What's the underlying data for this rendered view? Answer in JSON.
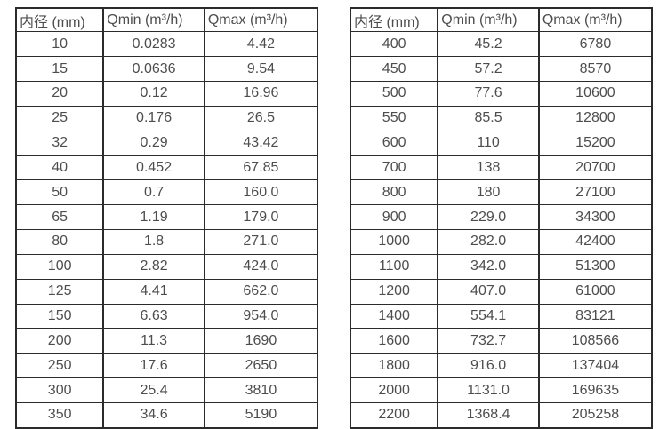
{
  "colors": {
    "background": "#ffffff",
    "border": "#2b2b2b",
    "text": "#4d4d4d"
  },
  "column_names": [
    "diameter",
    "qmin",
    "qmax"
  ],
  "table_left": {
    "headers": [
      "内径 (mm)",
      "Qmin (m³/h)",
      "Qmax (m³/h)"
    ],
    "rows": [
      [
        "10",
        "0.0283",
        "4.42"
      ],
      [
        "15",
        "0.0636",
        "9.54"
      ],
      [
        "20",
        "0.12",
        "16.96"
      ],
      [
        "25",
        "0.176",
        "26.5"
      ],
      [
        "32",
        "0.29",
        "43.42"
      ],
      [
        "40",
        "0.452",
        "67.85"
      ],
      [
        "50",
        "0.7",
        "160.0"
      ],
      [
        "65",
        "1.19",
        "179.0"
      ],
      [
        "80",
        "1.8",
        "271.0"
      ],
      [
        "100",
        "2.82",
        "424.0"
      ],
      [
        "125",
        "4.41",
        "662.0"
      ],
      [
        "150",
        "6.63",
        "954.0"
      ],
      [
        "200",
        "11.3",
        "1690"
      ],
      [
        "250",
        "17.6",
        "2650"
      ],
      [
        "300",
        "25.4",
        "3810"
      ],
      [
        "350",
        "34.6",
        "5190"
      ]
    ]
  },
  "table_right": {
    "headers": [
      "内径 (mm)",
      "Qmin (m³/h)",
      "Qmax (m³/h)"
    ],
    "rows": [
      [
        "400",
        "45.2",
        "6780"
      ],
      [
        "450",
        "57.2",
        "8570"
      ],
      [
        "500",
        "77.6",
        "10600"
      ],
      [
        "550",
        "85.5",
        "12800"
      ],
      [
        "600",
        "110",
        "15200"
      ],
      [
        "700",
        "138",
        "20700"
      ],
      [
        "800",
        "180",
        "27100"
      ],
      [
        "900",
        "229.0",
        "34300"
      ],
      [
        "1000",
        "282.0",
        "42400"
      ],
      [
        "1100",
        "342.0",
        "51300"
      ],
      [
        "1200",
        "407.0",
        "61000"
      ],
      [
        "1400",
        "554.1",
        "83121"
      ],
      [
        "1600",
        "732.7",
        "108566"
      ],
      [
        "1800",
        "916.0",
        "137404"
      ],
      [
        "2000",
        "1131.0",
        "169635"
      ],
      [
        "2200",
        "1368.4",
        "205258"
      ]
    ]
  }
}
